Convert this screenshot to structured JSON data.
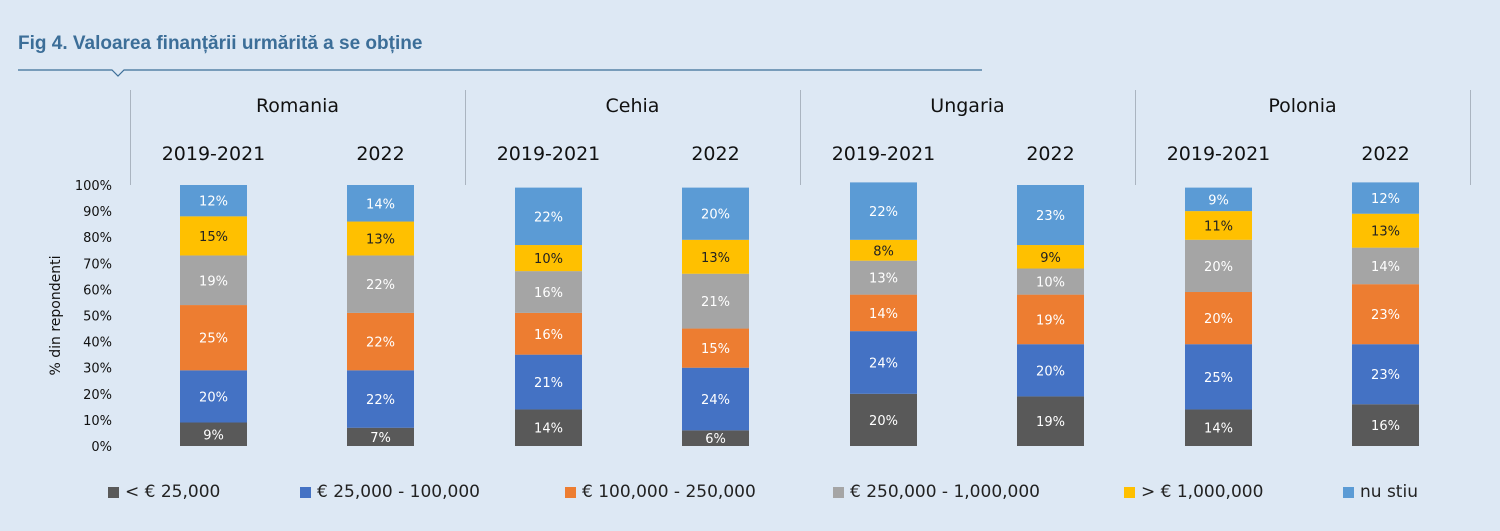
{
  "title": "Fig 4. Valoarea finanțării urmărită a se obține",
  "chart_data": {
    "type": "bar",
    "stacked": true,
    "percent": true,
    "ylabel": "% din repondenti",
    "ylim": [
      0,
      100
    ],
    "yticks": [
      "0%",
      "10%",
      "20%",
      "30%",
      "40%",
      "50%",
      "60%",
      "70%",
      "80%",
      "90%",
      "100%"
    ],
    "groups": [
      {
        "name": "Romania",
        "periods": [
          "2019-2021",
          "2022"
        ]
      },
      {
        "name": "Cehia",
        "periods": [
          "2019-2021",
          "2022"
        ]
      },
      {
        "name": "Ungaria",
        "periods": [
          "2019-2021",
          "2022"
        ]
      },
      {
        "name": "Polonia",
        "periods": [
          "2019-2021",
          "2022"
        ]
      }
    ],
    "categories": [
      "Romania 2019-2021",
      "Romania 2022",
      "Cehia 2019-2021",
      "Cehia 2022",
      "Ungaria 2019-2021",
      "Ungaria 2022",
      "Polonia 2019-2021",
      "Polonia 2022"
    ],
    "series": [
      {
        "name": "< € 25,000",
        "color": "#595959",
        "values": [
          9,
          7,
          14,
          6,
          20,
          19,
          14,
          16
        ]
      },
      {
        "name": "€ 25,000 - 100,000",
        "color": "#4472c4",
        "values": [
          20,
          22,
          21,
          24,
          24,
          20,
          25,
          23
        ]
      },
      {
        "name": "€ 100,000 - 250,000",
        "color": "#ed7d31",
        "values": [
          25,
          22,
          16,
          15,
          14,
          19,
          20,
          23
        ]
      },
      {
        "name": "€ 250,000 - 1,000,000",
        "color": "#a5a5a5",
        "values": [
          19,
          22,
          16,
          21,
          13,
          10,
          20,
          14
        ]
      },
      {
        "name": "> € 1,000,000",
        "color": "#ffc000",
        "values": [
          15,
          13,
          10,
          13,
          8,
          9,
          11,
          13
        ]
      },
      {
        "name": "nu stiu",
        "color": "#5b9bd5",
        "values": [
          12,
          14,
          22,
          20,
          22,
          23,
          9,
          12
        ]
      }
    ],
    "legend_position": "bottom",
    "grid": false
  }
}
